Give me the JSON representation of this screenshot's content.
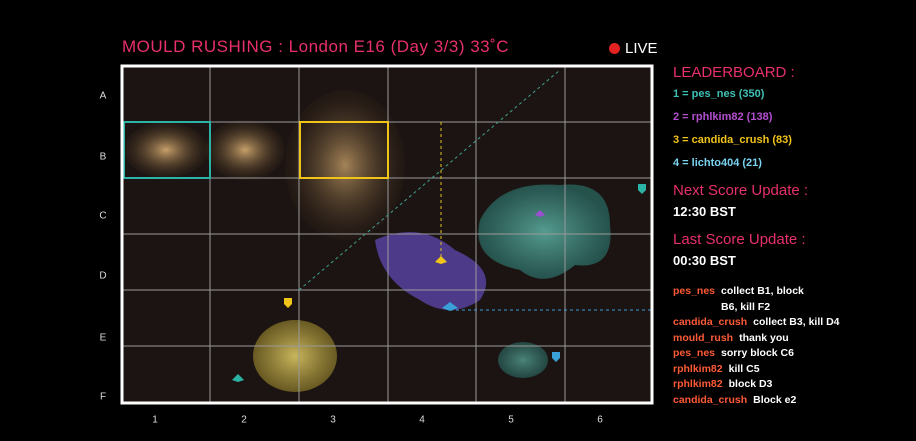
{
  "header": {
    "title": "MOULD RUSHING : London E16 (Day 3/3) 33˚C",
    "live": "LIVE"
  },
  "board": {
    "rows": [
      "A",
      "B",
      "C",
      "D",
      "E",
      "F"
    ],
    "columns": [
      "1",
      "2",
      "3",
      "4",
      "5",
      "6"
    ]
  },
  "leaderboard": {
    "title": "LEADERBOARD :",
    "entries": [
      "1 = pes_nes (350)",
      "2 = rphlkim82 (138)",
      "3 = candida_crush (83)",
      "4 = lichto404 (21)"
    ]
  },
  "score_updates": {
    "next_label": "Next Score Update :",
    "next_time": "12:30 BST",
    "last_label": "Last Score Update :",
    "last_time": "00:30 BST"
  },
  "chat": [
    {
      "user": "pes_nes",
      "message": "collect B1, block B6, kill F2"
    },
    {
      "user": "candida_crush",
      "message": "collect B3, kill D4"
    },
    {
      "user": "mould_rush",
      "message": "thank you"
    },
    {
      "user": "pes_nes",
      "message": "sorry block C6"
    },
    {
      "user": "rphlkim82",
      "message": "kill C5"
    },
    {
      "user": "rphlkim82",
      "message": "block D3"
    },
    {
      "user": "candida_crush",
      "message": "Block e2"
    }
  ]
}
